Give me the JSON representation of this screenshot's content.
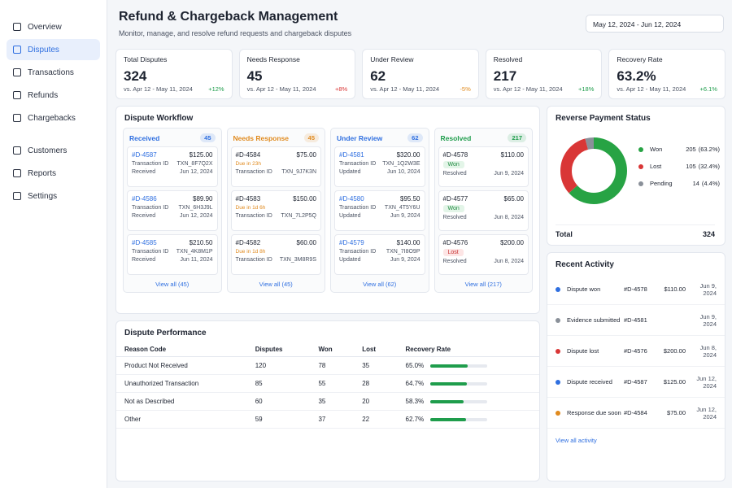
{
  "sidebar": {
    "nav": [
      {
        "label": "Overview"
      },
      {
        "label": "Disputes",
        "active": true
      },
      {
        "label": "Transactions"
      },
      {
        "label": "Refunds"
      },
      {
        "label": "Chargebacks"
      },
      {
        "label": "Customers"
      },
      {
        "label": "Reports"
      },
      {
        "label": "Settings"
      }
    ]
  },
  "header": {
    "title": "Refund & Chargeback Management",
    "subtitle": "Monitor, manage, and resolve refund requests and chargeback disputes",
    "date_range": "May 12, 2024 - Jun 12, 2024"
  },
  "kpis": [
    {
      "label": "Total Disputes",
      "value": 324,
      "period": "vs. Apr 12 - May 11, 2024",
      "change": "+12%",
      "change_color": "#1f9d4c"
    },
    {
      "label": "Needs Response",
      "value": 45,
      "period": "vs. Apr 12 - May 11, 2024",
      "change": "+8%",
      "change_color": "#d93636"
    },
    {
      "label": "Under Review",
      "value": 62,
      "period": "vs. Apr 12 - May 11, 2024",
      "change": "-5%",
      "change_color": "#e08a1e"
    },
    {
      "label": "Resolved",
      "value": 217,
      "period": "vs. Apr 12 - May 11, 2024",
      "change": "+18%",
      "change_color": "#1f9d4c"
    },
    {
      "label": "Recovery Rate",
      "value": "63.2%",
      "period": "vs. Apr 12 - May 11, 2024",
      "change": "+6.1%",
      "change_color": "#1f9d4c"
    }
  ],
  "workflow": {
    "title": "Dispute Workflow",
    "columns": [
      {
        "name": "Received",
        "count": 45,
        "color": "#2f6fe0",
        "view_all": "View all (45)",
        "cards": [
          {
            "id": "#D-4587",
            "amount": "$125.00",
            "lines": [
              {
                "label": "Transaction ID",
                "value": "TXN_8F7Q2X"
              },
              {
                "label": "Received",
                "value": "Jun 12, 2024"
              }
            ]
          },
          {
            "id": "#D-4586",
            "amount": "$89.90",
            "lines": [
              {
                "label": "Transaction ID",
                "value": "TXN_6H3J9L"
              },
              {
                "label": "Received",
                "value": "Jun 12, 2024"
              }
            ]
          },
          {
            "id": "#D-4585",
            "amount": "$210.50",
            "lines": [
              {
                "label": "Transaction ID",
                "value": "TXN_4K8M1P"
              },
              {
                "label": "Received",
                "value": "Jun 11, 2024"
              }
            ]
          }
        ]
      },
      {
        "name": "Needs Response",
        "count": 45,
        "color": "#e08a1e",
        "view_all": "View all (45)",
        "cards": [
          {
            "id": "#D-4584",
            "amount": "$75.00",
            "note": "Due in 23h",
            "lines": [
              {
                "label": "Transaction ID",
                "value": "TXN_9J7K3N"
              }
            ]
          },
          {
            "id": "#D-4583",
            "amount": "$150.00",
            "note": "Due in 1d 6h",
            "lines": [
              {
                "label": "Transaction ID",
                "value": "TXN_7L2P5Q"
              }
            ]
          },
          {
            "id": "#D-4582",
            "amount": "$60.00",
            "note": "Due in 1d 8h",
            "lines": [
              {
                "label": "Transaction ID",
                "value": "TXN_3M8R9S"
              }
            ]
          }
        ]
      },
      {
        "name": "Under Review",
        "count": 62,
        "color": "#2f6fe0",
        "view_all": "View all (62)",
        "cards": [
          {
            "id": "#D-4581",
            "amount": "$320.00",
            "lines": [
              {
                "label": "Transaction ID",
                "value": "TXN_1Q2W3E"
              },
              {
                "label": "Updated",
                "value": "Jun 10, 2024"
              }
            ]
          },
          {
            "id": "#D-4580",
            "amount": "$95.50",
            "lines": [
              {
                "label": "Transaction ID",
                "value": "TXN_4T5Y6U"
              },
              {
                "label": "Updated",
                "value": "Jun 9, 2024"
              }
            ]
          },
          {
            "id": "#D-4579",
            "amount": "$140.00",
            "lines": [
              {
                "label": "Transaction ID",
                "value": "TXN_7I8O9P"
              },
              {
                "label": "Updated",
                "value": "Jun 9, 2024"
              }
            ]
          }
        ]
      },
      {
        "name": "Resolved",
        "count": 217,
        "color": "#1f9d4c",
        "view_all": "View all (217)",
        "cards": [
          {
            "id": "#D-4578",
            "amount": "$110.00",
            "badge": {
              "text": "Won",
              "tone": "green"
            },
            "lines": [
              {
                "label": "Resolved",
                "value": "Jun 9, 2024"
              }
            ]
          },
          {
            "id": "#D-4577",
            "amount": "$65.00",
            "badge": {
              "text": "Won",
              "tone": "green"
            },
            "lines": [
              {
                "label": "Resolved",
                "value": "Jun 8, 2024"
              }
            ]
          },
          {
            "id": "#D-4576",
            "amount": "$200.00",
            "badge": {
              "text": "Lost",
              "tone": "red"
            },
            "lines": [
              {
                "label": "Resolved",
                "value": "Jun 8, 2024"
              }
            ]
          }
        ]
      }
    ]
  },
  "performance": {
    "title": "Dispute Performance",
    "headers": [
      "Reason Code",
      "Disputes",
      "Won",
      "Lost",
      "Recovery Rate"
    ],
    "rows": [
      {
        "reason": "Product Not Received",
        "disputes": 120,
        "won": 78,
        "lost": 35,
        "rate": 65.0,
        "rate_label": "65.0%"
      },
      {
        "reason": "Unauthorized Transaction",
        "disputes": 85,
        "won": 55,
        "lost": 28,
        "rate": 64.7,
        "rate_label": "64.7%"
      },
      {
        "reason": "Not as Described",
        "disputes": 60,
        "won": 35,
        "lost": 20,
        "rate": 58.3,
        "rate_label": "58.3%"
      },
      {
        "reason": "Other",
        "disputes": 59,
        "won": 37,
        "lost": 22,
        "rate": 62.7,
        "rate_label": "62.7%"
      }
    ],
    "bar_color": "#1f9d4c"
  },
  "status": {
    "title": "Reverse Payment Status",
    "items": [
      {
        "name": "Won",
        "count": 205,
        "share": "(63.2%)",
        "color": "#27a344"
      },
      {
        "name": "Lost",
        "count": 105,
        "share": "(32.4%)",
        "color": "#d93636"
      },
      {
        "name": "Pending",
        "count": 14,
        "share": "(4.4%)",
        "color": "#8a9099"
      }
    ],
    "total_label": "Total",
    "total": 324
  },
  "activity": {
    "title": "Recent Activity",
    "items": [
      {
        "event": "Dispute won",
        "id": "#D-4578",
        "amount": "$110.00",
        "date": "Jun 9, 2024",
        "color": "#2f6fe0"
      },
      {
        "event": "Evidence submitted",
        "id": "#D-4581",
        "date": "Jun 9, 2024",
        "color": "#8a9099"
      },
      {
        "event": "Dispute lost",
        "id": "#D-4576",
        "amount": "$200.00",
        "date": "Jun 8, 2024",
        "color": "#d93636"
      },
      {
        "event": "Dispute received",
        "id": "#D-4587",
        "amount": "$125.00",
        "date": "Jun 12, 2024",
        "color": "#2f6fe0"
      },
      {
        "event": "Response due soon",
        "id": "#D-4584",
        "amount": "$75.00",
        "date": "Jun 12, 2024",
        "color": "#e08a1e"
      }
    ],
    "view_all": "View all activity"
  }
}
